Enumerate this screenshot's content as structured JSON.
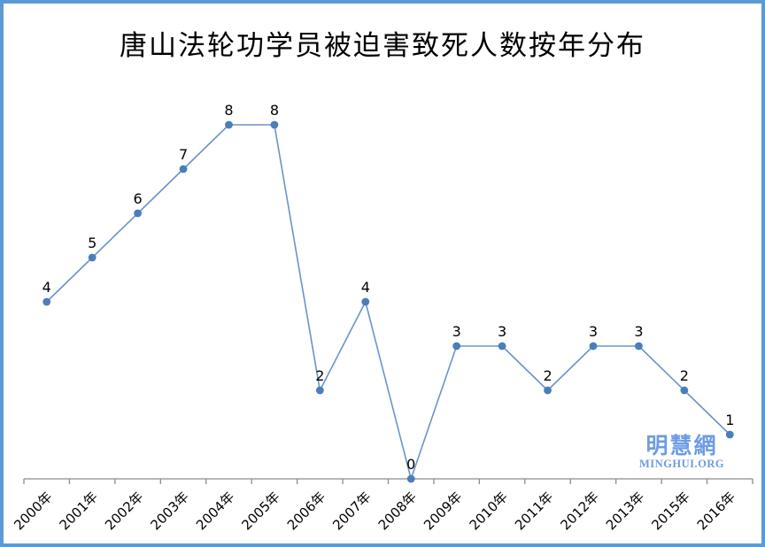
{
  "page": {
    "frame_border_color": "#5b9bd5",
    "background_color": "#ffffff"
  },
  "chart_data": {
    "type": "line",
    "title": "唐山法轮功学员被迫害致死人数按年分布",
    "categories": [
      "2000年",
      "2001年",
      "2002年",
      "2003年",
      "2004年",
      "2005年",
      "2006年",
      "2007年",
      "2008年",
      "2009年",
      "2010年",
      "2011年",
      "2012年",
      "2013年",
      "2015年",
      "2016年"
    ],
    "values": [
      4,
      5,
      6,
      7,
      8,
      8,
      2,
      4,
      0,
      3,
      3,
      2,
      3,
      3,
      2,
      1
    ],
    "xlabel": "",
    "ylabel": "",
    "ylim": [
      0,
      8
    ],
    "grid": false,
    "legend_position": "none",
    "data_labels_shown": true,
    "marker_color": "#4a7ebb",
    "line_color": "#6b93c9",
    "axis_color": "#8c8c8c",
    "label_color": "#000000"
  },
  "watermark": {
    "cjk": "明慧網",
    "latin": "MINGHUI.ORG",
    "color": "#6d9ce3"
  }
}
